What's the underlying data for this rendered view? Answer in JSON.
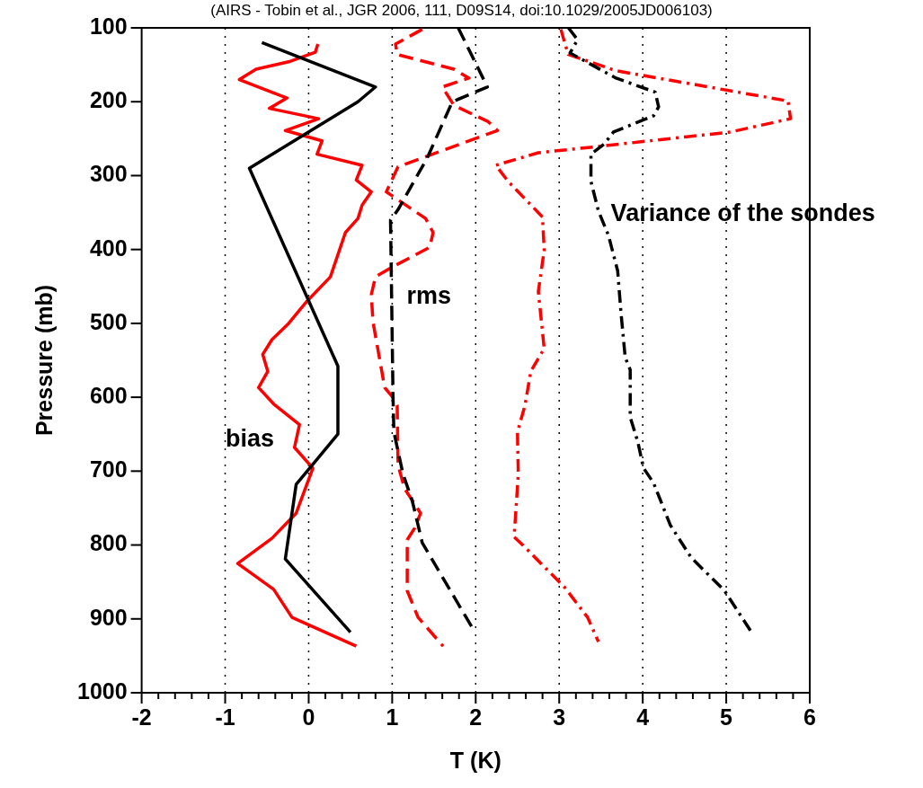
{
  "chart_data": {
    "type": "line",
    "title": "(AIRS - Tobin et al., JGR 2006, 111, D09S14, doi:10.1029/2005JD006103)",
    "xlabel": "T (K)",
    "ylabel": "Pressure (mb)",
    "xlim": [
      -2,
      6
    ],
    "ylim": [
      1000,
      100
    ],
    "xticks": [
      -2,
      {
        "value": -1.8,
        "label": null
      },
      {
        "value": -1.6,
        "label": null
      },
      {
        "value": -1.4,
        "label": null
      },
      {
        "value": -1.2,
        "label": null
      },
      -1,
      {
        "value": -0.8,
        "label": null
      },
      {
        "value": -0.6,
        "label": null
      },
      {
        "value": -0.4,
        "label": null
      },
      {
        "value": -0.2,
        "label": null
      },
      0,
      {
        "value": 0.2,
        "label": null
      },
      {
        "value": 0.4,
        "label": null
      },
      {
        "value": 0.6,
        "label": null
      },
      {
        "value": 0.8,
        "label": null
      },
      1,
      {
        "value": 1.2,
        "label": null
      },
      {
        "value": 1.4,
        "label": null
      },
      {
        "value": 1.6,
        "label": null
      },
      {
        "value": 1.8,
        "label": null
      },
      2,
      {
        "value": 2.2,
        "label": null
      },
      {
        "value": 2.4,
        "label": null
      },
      {
        "value": 2.6,
        "label": null
      },
      {
        "value": 2.8,
        "label": null
      },
      3,
      {
        "value": 3.2,
        "label": null
      },
      {
        "value": 3.4,
        "label": null
      },
      {
        "value": 3.6,
        "label": null
      },
      {
        "value": 3.8,
        "label": null
      },
      4,
      {
        "value": 4.2,
        "label": null
      },
      {
        "value": 4.4,
        "label": null
      },
      {
        "value": 4.6,
        "label": null
      },
      {
        "value": 4.8,
        "label": null
      },
      5,
      {
        "value": 5.2,
        "label": null
      },
      {
        "value": 5.4,
        "label": null
      },
      {
        "value": 5.6,
        "label": null
      },
      {
        "value": 5.8,
        "label": null
      },
      6
    ],
    "yticks": [
      100,
      200,
      300,
      400,
      500,
      600,
      700,
      800,
      900,
      1000
    ],
    "grid": "x",
    "legend": false,
    "marker": "none",
    "series": [
      {
        "color": "#000000",
        "line_style": "solid",
        "x": [
          -0.56,
          0.8,
          0.59,
          -0.71,
          0.35,
          0.35,
          -0.15,
          -0.28,
          0.5
        ],
        "values": [
          120,
          180,
          200,
          290,
          558,
          650,
          718,
          819,
          918
        ]
      },
      {
        "color": "#ff0000",
        "line_style": "solid",
        "x": [
          0.11,
          0.08,
          -0.24,
          -0.63,
          -0.83,
          -0.56,
          -0.26,
          -0.47,
          0.12,
          -0.28,
          0.16,
          0.1,
          0.64,
          0.57,
          0.75,
          0.64,
          0.59,
          0.44,
          0.26,
          -0.02,
          -0.24,
          -0.44,
          -0.55,
          -0.49,
          -0.6,
          -0.42,
          -0.11,
          -0.17,
          0.05,
          -0.15,
          -0.44,
          -0.85,
          -0.42,
          -0.2,
          0.57
        ],
        "values": [
          122,
          133,
          146,
          156,
          170,
          182,
          195,
          209,
          223,
          239,
          253,
          271,
          286,
          306,
          322,
          340,
          358,
          377,
          437,
          470,
          500,
          522,
          542,
          565,
          587,
          609,
          637,
          668,
          696,
          757,
          791,
          825,
          860,
          898,
          937
        ]
      },
      {
        "color": "#000000",
        "line_style": "dashed",
        "x": [
          1.79,
          2.14,
          1.72,
          1.42,
          1.07,
          0.98,
          1.01,
          1.02,
          1.13,
          1.24,
          1.36,
          1.99
        ],
        "values": [
          100,
          180,
          200,
          276,
          346,
          360,
          599,
          647,
          704,
          740,
          797,
          918
        ]
      },
      {
        "color": "#ff0000",
        "line_style": "dashed",
        "x": [
          1.36,
          1.04,
          1.06,
          1.74,
          1.92,
          1.6,
          1.74,
          2.15,
          2.26,
          1.07,
          0.93,
          1.4,
          1.49,
          1.45,
          0.98,
          0.8,
          0.75,
          0.77,
          0.86,
          0.91,
          1,
          1.06,
          1.07,
          1.15,
          1.34,
          1.27,
          1.18,
          1.18,
          1.31,
          1.61
        ],
        "values": [
          102,
          122,
          136,
          156,
          168,
          180,
          205,
          227,
          239,
          288,
          322,
          358,
          377,
          397,
          425,
          437,
          461,
          498,
          555,
          587,
          599,
          611,
          692,
          724,
          757,
          777,
          793,
          862,
          898,
          937
        ]
      },
      {
        "color": "#000000",
        "line_style": "dashdot",
        "x": [
          3.11,
          3.22,
          3.13,
          3.68,
          4.15,
          4.19,
          4.13,
          3.65,
          3.54,
          3.38,
          3.38,
          3.47,
          3.59,
          3.7,
          3.74,
          3.79,
          3.85,
          3.85,
          3.94,
          4.01,
          4.13,
          4.33,
          4.58,
          4.98,
          5.29
        ],
        "values": [
          100,
          116,
          134,
          168,
          187,
          207,
          219,
          241,
          257,
          271,
          308,
          348,
          381,
          429,
          486,
          546,
          563,
          627,
          660,
          696,
          716,
          773,
          817,
          862,
          916
        ]
      },
      {
        "color": "#ff0000",
        "line_style": "dashdot",
        "x": [
          3.02,
          3.07,
          3.11,
          3.68,
          5.74,
          5.77,
          5.05,
          3.43,
          2.75,
          2.24,
          2.39,
          2.8,
          2.82,
          2.75,
          2.82,
          2.66,
          2.59,
          2.5,
          2.51,
          2.46,
          2.59,
          3.07,
          3.34,
          3.47
        ],
        "values": [
          102,
          122,
          136,
          158,
          199,
          223,
          241,
          261,
          269,
          286,
          308,
          356,
          401,
          457,
          534,
          565,
          611,
          647,
          704,
          789,
          803,
          858,
          898,
          931
        ]
      }
    ],
    "annotations": [
      "bias",
      "rms",
      "Variance of the sondes"
    ]
  }
}
